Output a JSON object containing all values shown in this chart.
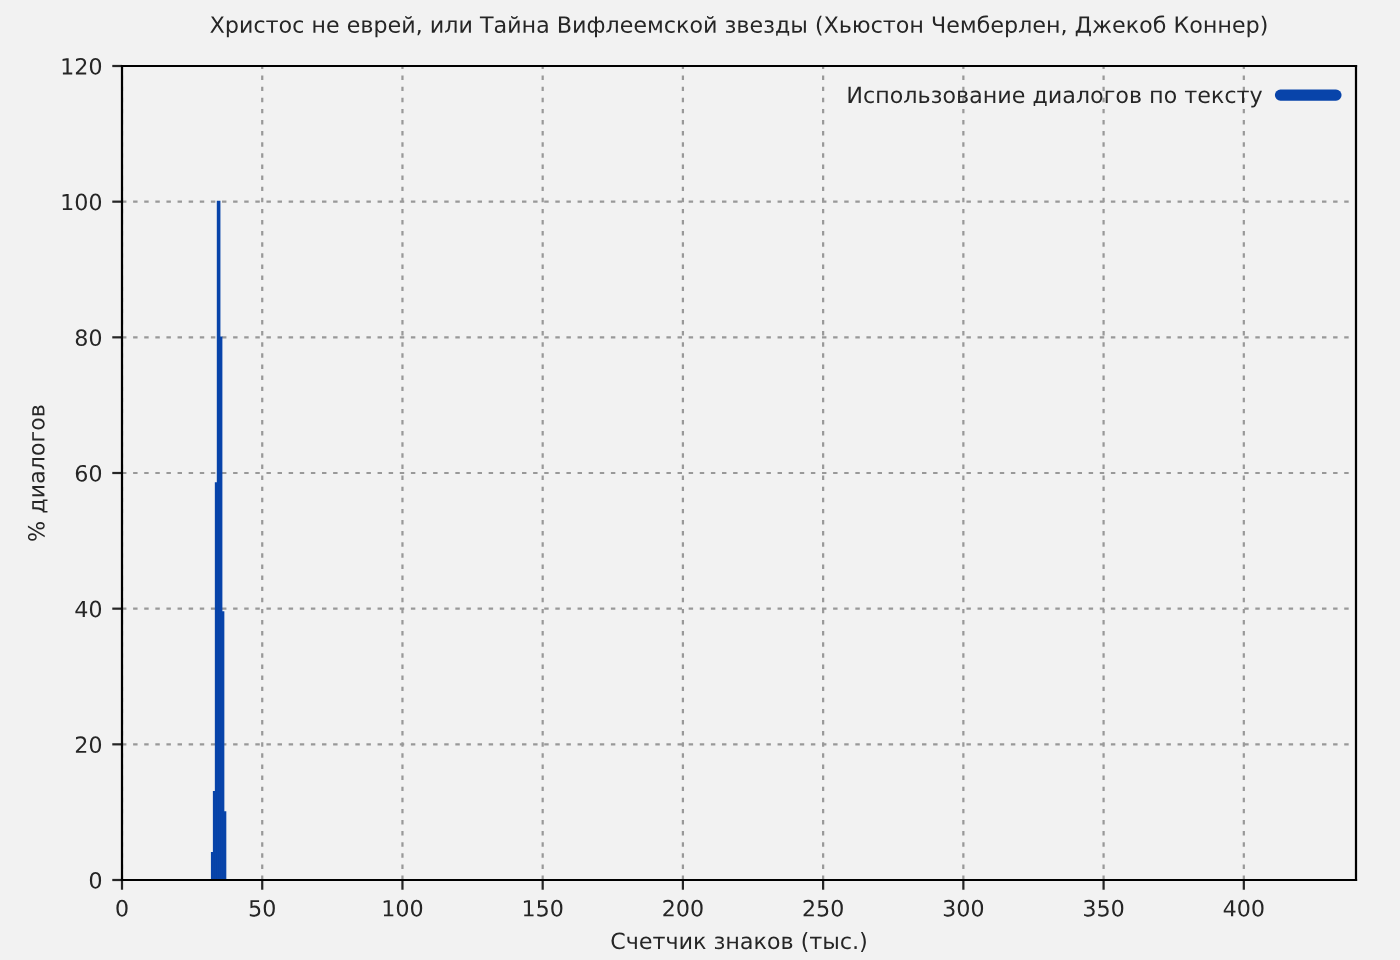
{
  "chart_data": {
    "type": "histogram",
    "title": "Христос не еврей, или Тайна Вифлеемской звезды (Хьюстон Чемберлен, Джекоб Коннер)",
    "xlabel": "Счетчик знаков (тыс.)",
    "ylabel": "% диалогов",
    "bins": [
      32,
      32.7,
      33.4,
      34.1,
      34.8,
      35.5,
      36.2,
      36.9
    ],
    "series": [
      {
        "name": "Использование диалогов по тексту",
        "color": "#0844aa",
        "values": [
          4,
          13,
          58.5,
          100,
          80,
          39.5,
          10
        ]
      }
    ],
    "xlim": [
      0,
      440
    ],
    "xticks": [
      0,
      50,
      100,
      150,
      200,
      250,
      300,
      350,
      400
    ],
    "ylim": [
      0,
      120
    ],
    "yticks": [
      0,
      20,
      40,
      60,
      80,
      100,
      120
    ],
    "grid": true,
    "legend": "top right"
  }
}
